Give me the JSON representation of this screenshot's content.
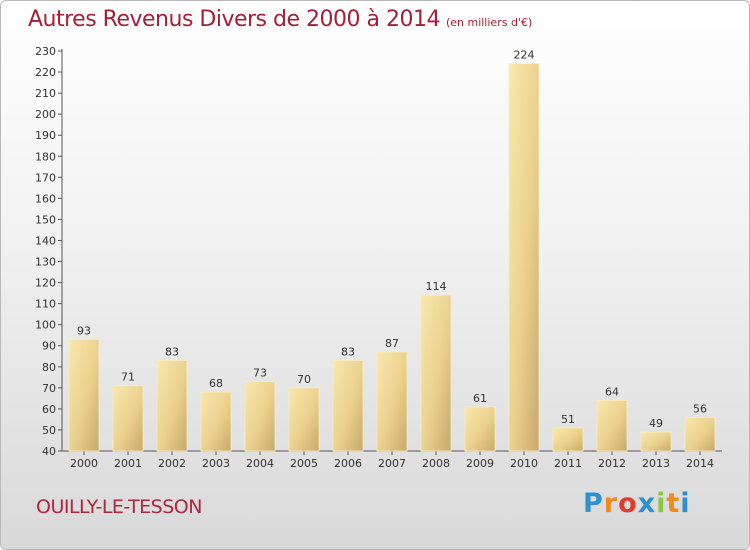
{
  "title": "Autres Revenus Divers de 2000 à 2014",
  "unit_note": "(en milliers d'€)",
  "place_name": "OUILLY-LE-TESSON",
  "logo_text": "Proxiti",
  "chart_data": {
    "type": "bar",
    "categories": [
      "2000",
      "2001",
      "2002",
      "2003",
      "2004",
      "2005",
      "2006",
      "2007",
      "2008",
      "2009",
      "2010",
      "2011",
      "2012",
      "2013",
      "2014"
    ],
    "values": [
      93,
      71,
      83,
      68,
      73,
      70,
      83,
      87,
      114,
      61,
      224,
      51,
      64,
      49,
      56
    ],
    "ylim": [
      40,
      230
    ],
    "ytick_step": 10,
    "grid": false,
    "bar_color": "#e8cf8c",
    "bar_top_color": "#f7e4a6",
    "bar_bottom_color": "#c9ad6c"
  }
}
